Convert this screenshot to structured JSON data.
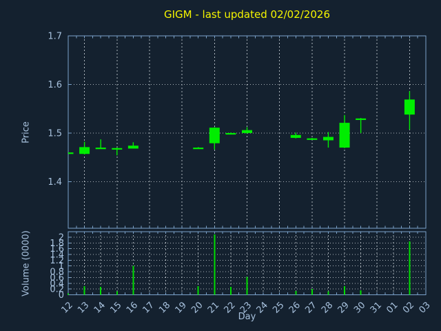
{
  "title": "GIGM - last updated 02/02/2026",
  "colors": {
    "background": "#14212f",
    "frame": "#7ca3cb",
    "grid": "#aeb6bd",
    "text": "#a8c2de",
    "title": "#f5f500",
    "candle": "#00ee00",
    "volume_bar": "#00dd00"
  },
  "chart_data": {
    "type": "candlestick",
    "title": "GIGM - last updated 02/02/2026",
    "xlabel": "Day",
    "grid": true,
    "x_ticklabels": [
      "12",
      "13",
      "14",
      "15",
      "16",
      "17",
      "18",
      "19",
      "20",
      "21",
      "22",
      "23",
      "24",
      "25",
      "26",
      "27",
      "28",
      "29",
      "30",
      "31",
      "01",
      "02",
      "03"
    ],
    "price_axis": {
      "label": "Price",
      "ylim": [
        1.304,
        1.7
      ],
      "ticks": [
        1.4,
        1.5,
        1.6,
        1.7
      ]
    },
    "volume_axis": {
      "label": "Volume (0000)",
      "ylim": [
        0,
        2.19
      ],
      "ticks": [
        0,
        0.2,
        0.4,
        0.6,
        0.8,
        1,
        1.2,
        1.4,
        1.6,
        1.8,
        2
      ]
    },
    "candles": [
      {
        "day": "12",
        "open": 1.46,
        "high": 1.461,
        "low": 1.459,
        "close": 1.46,
        "volume": 0.05
      },
      {
        "day": "13",
        "open": 1.457,
        "high": 1.482,
        "low": 1.456,
        "close": 1.471,
        "volume": 0.3
      },
      {
        "day": "14",
        "open": 1.469,
        "high": 1.487,
        "low": 1.468,
        "close": 1.47,
        "volume": 0.27
      },
      {
        "day": "15",
        "open": 1.469,
        "high": 1.47,
        "low": 1.454,
        "close": 1.469,
        "volume": 0.12
      },
      {
        "day": "16",
        "open": 1.468,
        "high": 1.481,
        "low": 1.468,
        "close": 1.474,
        "volume": 1.0
      },
      {
        "day": "20",
        "open": 1.47,
        "high": 1.471,
        "low": 1.469,
        "close": 1.47,
        "volume": 0.3
      },
      {
        "day": "21",
        "open": 1.479,
        "high": 1.512,
        "low": 1.466,
        "close": 1.511,
        "volume": 2.1
      },
      {
        "day": "22",
        "open": 1.5,
        "high": 1.501,
        "low": 1.497,
        "close": 1.499,
        "volume": 0.28
      },
      {
        "day": "23",
        "open": 1.5,
        "high": 1.512,
        "low": 1.499,
        "close": 1.506,
        "volume": 0.62
      },
      {
        "day": "26",
        "open": 1.49,
        "high": 1.501,
        "low": 1.489,
        "close": 1.496,
        "volume": 0.13
      },
      {
        "day": "27",
        "open": 1.489,
        "high": 1.49,
        "low": 1.487,
        "close": 1.488,
        "volume": 0.2
      },
      {
        "day": "28",
        "open": 1.485,
        "high": 1.502,
        "low": 1.47,
        "close": 1.492,
        "volume": 0.12
      },
      {
        "day": "29",
        "open": 1.47,
        "high": 1.537,
        "low": 1.469,
        "close": 1.521,
        "volume": 0.3
      },
      {
        "day": "30",
        "open": 1.53,
        "high": 1.531,
        "low": 1.5,
        "close": 1.53,
        "volume": 0.16
      },
      {
        "day": "02",
        "open": 1.538,
        "high": 1.586,
        "low": 1.507,
        "close": 1.569,
        "volume": 1.86
      }
    ]
  }
}
